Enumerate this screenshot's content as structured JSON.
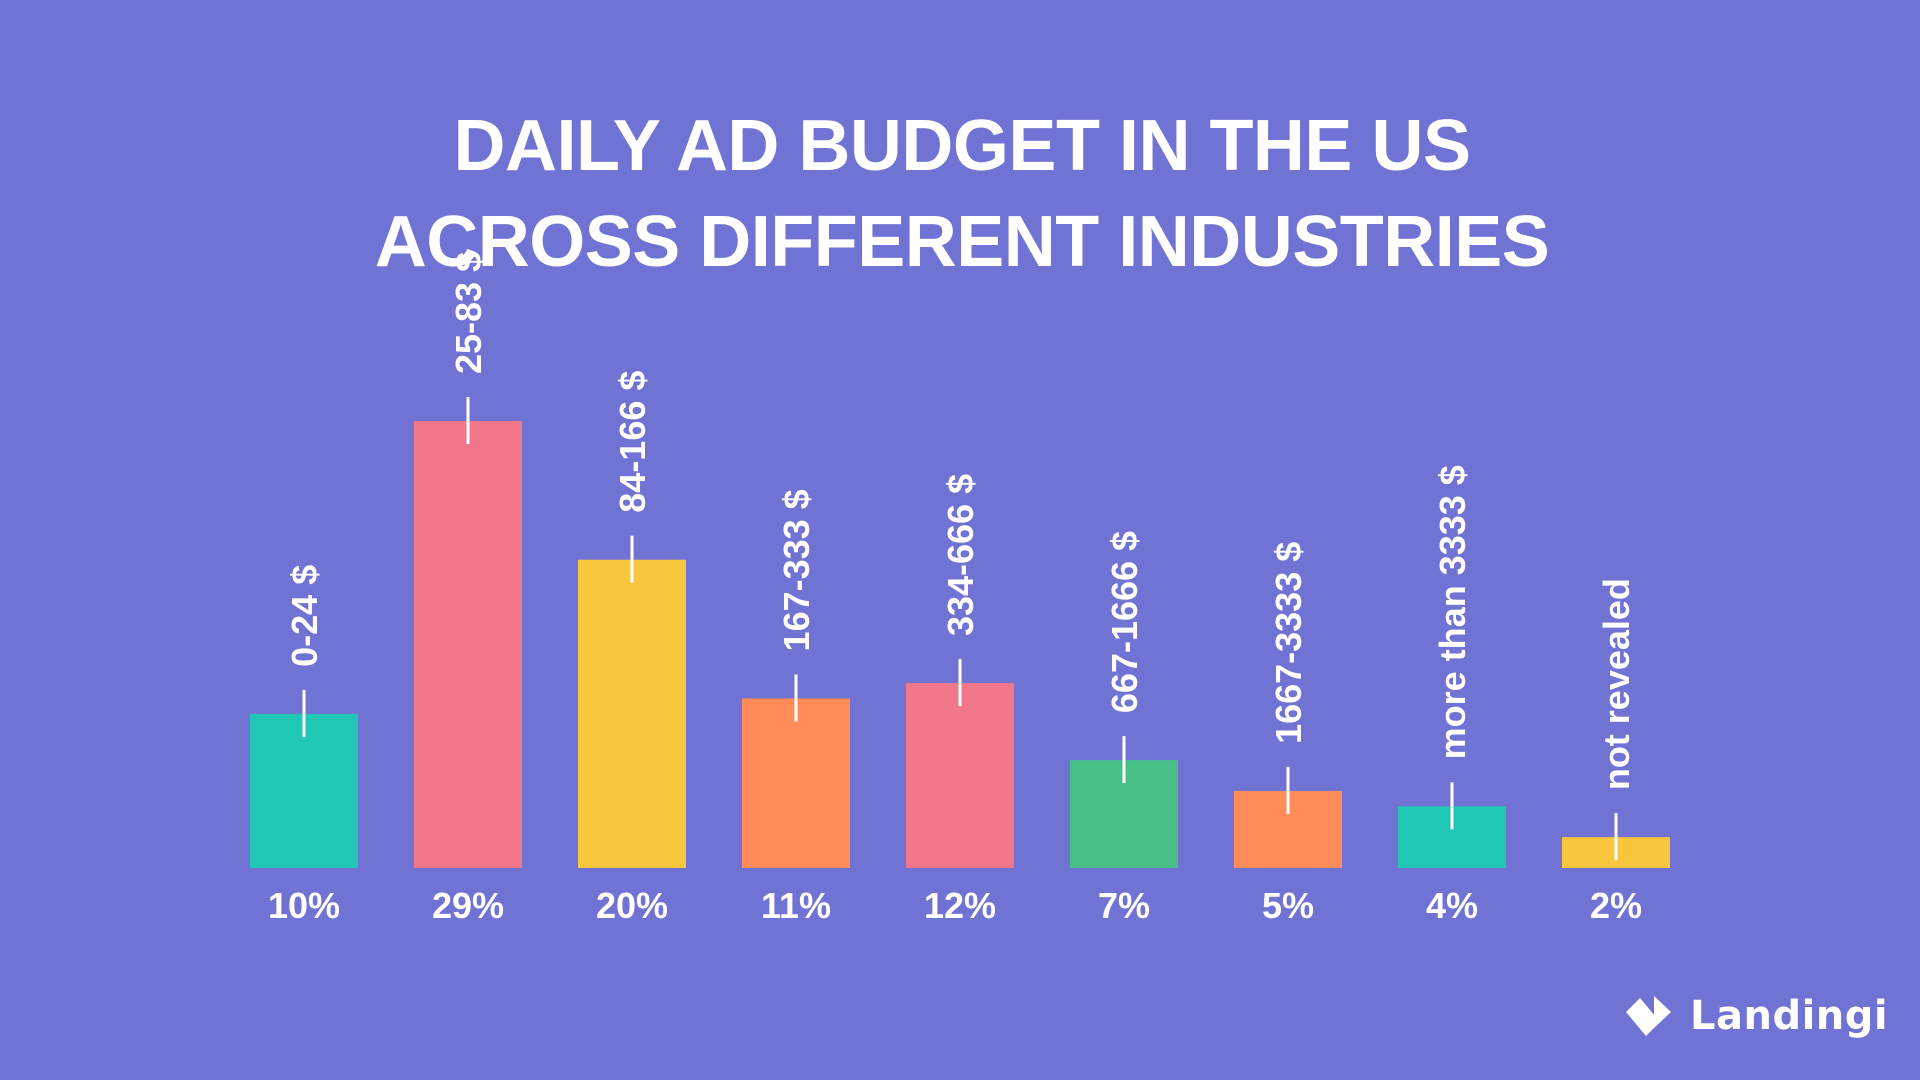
{
  "colors": {
    "background": "#7173D4",
    "teal": "#20C7B5",
    "pink": "#F0778A",
    "yellow": "#F7C63C",
    "orange": "#FF8C59",
    "green": "#47BF87",
    "text": "#FFFFFF"
  },
  "title": {
    "line1": "DAILY AD BUDGET IN THE US",
    "line2": "ACROSS DIFFERENT INDUSTRIES"
  },
  "brand": {
    "icon": "landingi-logo-icon",
    "name": "Landingi"
  },
  "chart_data": {
    "type": "bar",
    "title": "DAILY AD BUDGET IN THE US ACROSS DIFFERENT INDUSTRIES",
    "xlabel": "",
    "ylabel": "",
    "ylim": [
      0,
      30
    ],
    "grid": false,
    "legend": "none",
    "categories": [
      "0-24 $",
      "25-83 $",
      "84-166 $",
      "167-333 $",
      "334-666 $",
      "667-1666 $",
      "1667-3333 $",
      "more than 3333 $",
      "not revealed"
    ],
    "values": [
      10,
      29,
      20,
      11,
      12,
      7,
      5,
      4,
      2
    ],
    "value_labels": [
      "10%",
      "29%",
      "20%",
      "11%",
      "12%",
      "7%",
      "5%",
      "4%",
      "2%"
    ],
    "bar_colors": [
      "#20C7B5",
      "#F0778A",
      "#F7C63C",
      "#FF8C59",
      "#F0778A",
      "#47BF87",
      "#FF8C59",
      "#20C7B5",
      "#F7C63C"
    ],
    "unit": "%"
  }
}
